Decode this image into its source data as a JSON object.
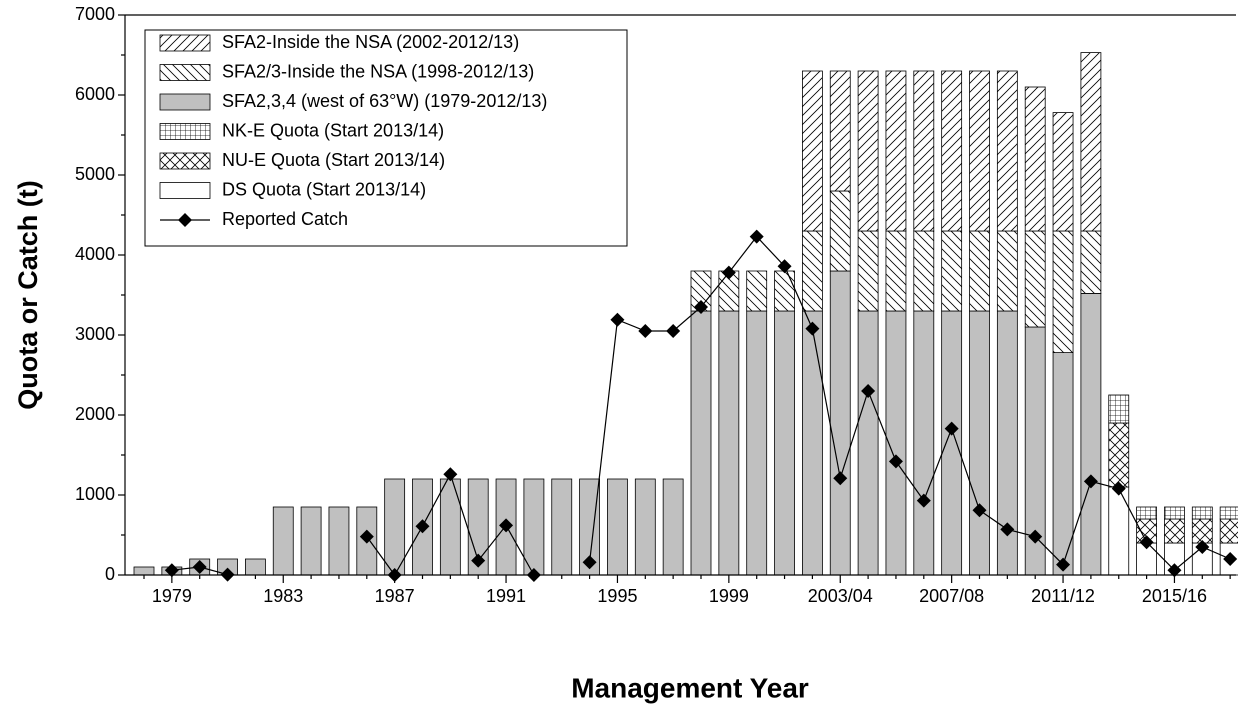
{
  "chart_data": {
    "type": "bar",
    "x_label": "Management Year",
    "y_label": "Quota or Catch (t)",
    "ylim": [
      0,
      7000
    ],
    "yticks": [
      0,
      1000,
      2000,
      3000,
      4000,
      5000,
      6000,
      7000
    ],
    "stacked": true,
    "legend": "top-left",
    "categories": [
      null,
      "1979",
      null,
      null,
      null,
      "1983",
      null,
      null,
      null,
      "1987",
      null,
      null,
      null,
      "1991",
      null,
      null,
      null,
      "1995",
      null,
      null,
      null,
      "1999",
      null,
      null,
      null,
      "2003/04",
      null,
      null,
      null,
      "2007/08",
      null,
      null,
      null,
      "2011/12",
      null,
      null,
      null,
      "2015/16",
      null,
      null
    ],
    "series": [
      {
        "name": "SFA2-Inside the NSA (2002-2012/13)",
        "color": "#ffffff",
        "pattern": "forward-hatch",
        "values": [
          null,
          null,
          null,
          null,
          null,
          null,
          null,
          null,
          null,
          null,
          null,
          null,
          null,
          null,
          null,
          null,
          null,
          null,
          null,
          null,
          null,
          null,
          null,
          null,
          2000,
          1500,
          2000,
          2000,
          2000,
          2000,
          2000,
          2000,
          1800,
          1480,
          2230,
          null,
          null,
          null,
          null,
          null
        ]
      },
      {
        "name": "SFA2/3-Inside the NSA (1998-2012/13)",
        "color": "#ffffff",
        "pattern": "back-hatch",
        "values": [
          null,
          null,
          null,
          null,
          null,
          null,
          null,
          null,
          null,
          null,
          null,
          null,
          null,
          null,
          null,
          null,
          null,
          null,
          null,
          null,
          500,
          500,
          500,
          500,
          1000,
          1000,
          1000,
          1000,
          1000,
          1000,
          1000,
          1000,
          1200,
          1520,
          780,
          null,
          null,
          null,
          null,
          null
        ]
      },
      {
        "name": "SFA2,3,4 (west of 63°W) (1979-2012/13)",
        "color": "#c0c0c0",
        "pattern": "solid",
        "values": [
          100,
          100,
          200,
          200,
          200,
          850,
          850,
          850,
          850,
          1200,
          1200,
          1200,
          1200,
          1200,
          1200,
          1200,
          1200,
          1200,
          1200,
          1200,
          3300,
          3300,
          3300,
          3300,
          3300,
          3800,
          3300,
          3300,
          3300,
          3300,
          3300,
          3300,
          3100,
          2780,
          3520,
          null,
          null,
          null,
          null,
          null
        ]
      },
      {
        "name": "NK-E Quota (Start 2013/14)",
        "color": "#ffffff",
        "pattern": "grid",
        "values": [
          null,
          null,
          null,
          null,
          null,
          null,
          null,
          null,
          null,
          null,
          null,
          null,
          null,
          null,
          null,
          null,
          null,
          null,
          null,
          null,
          null,
          null,
          null,
          null,
          null,
          null,
          null,
          null,
          null,
          null,
          null,
          null,
          null,
          null,
          null,
          350,
          150,
          150,
          150,
          150
        ]
      },
      {
        "name": "NU-E Quota (Start 2013/14)",
        "color": "#ffffff",
        "pattern": "cross-hatch",
        "values": [
          null,
          null,
          null,
          null,
          null,
          null,
          null,
          null,
          null,
          null,
          null,
          null,
          null,
          null,
          null,
          null,
          null,
          null,
          null,
          null,
          null,
          null,
          null,
          null,
          null,
          null,
          null,
          null,
          null,
          null,
          null,
          null,
          null,
          null,
          null,
          800,
          300,
          300,
          300,
          300
        ]
      },
      {
        "name": "DS Quota (Start 2013/14)",
        "color": "#ffffff",
        "pattern": "solid",
        "values": [
          null,
          null,
          null,
          null,
          null,
          null,
          null,
          null,
          null,
          null,
          null,
          null,
          null,
          null,
          null,
          null,
          null,
          null,
          null,
          null,
          null,
          null,
          null,
          null,
          null,
          null,
          null,
          null,
          null,
          null,
          null,
          null,
          null,
          null,
          null,
          1100,
          400,
          400,
          400,
          400
        ]
      },
      {
        "name": "Reported Catch",
        "color": "#000000",
        "type": "line",
        "values": [
          null,
          60,
          100,
          5,
          null,
          null,
          null,
          null,
          480,
          0,
          610,
          1260,
          180,
          620,
          0,
          null,
          160,
          3190,
          3050,
          3050,
          3350,
          3780,
          4230,
          3860,
          3080,
          1210,
          2300,
          1420,
          930,
          1830,
          810,
          570,
          480,
          130,
          1170,
          1080,
          410,
          60,
          350,
          200
        ]
      }
    ]
  }
}
